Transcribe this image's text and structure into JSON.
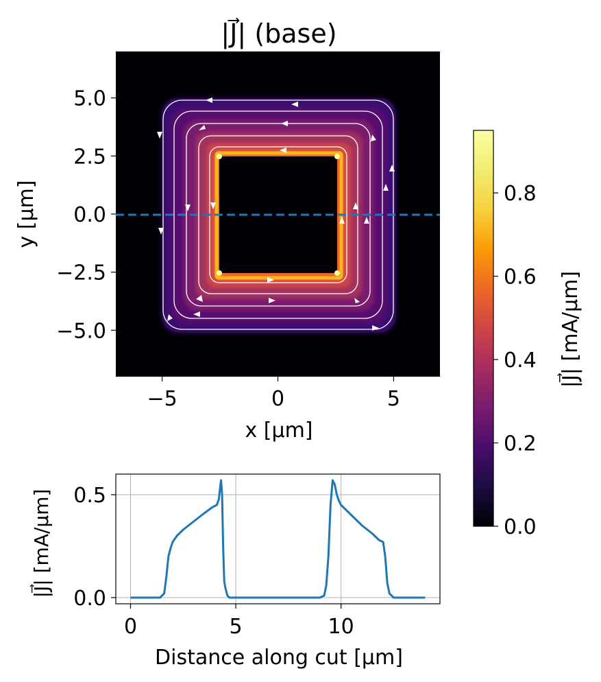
{
  "chart_data": [
    {
      "type": "heatmap",
      "title": "|J⃗| (base)",
      "xlabel": "x [µm]",
      "ylabel": "y [µm]",
      "xlim": [
        -7,
        7
      ],
      "ylim": [
        -7,
        7
      ],
      "x_ticks": [
        -5,
        0,
        5
      ],
      "x_tick_labels": [
        "−5",
        "0",
        "5"
      ],
      "y_ticks": [
        5.0,
        2.5,
        0.0,
        -2.5,
        -5.0
      ],
      "y_tick_labels": [
        "5.0",
        "2.5",
        "0.0",
        "−2.5",
        "−5.0"
      ],
      "colormap": "inferno",
      "description_values": {
        "inner_hole": {
          "x": [
            -2.5,
            2.5
          ],
          "y": [
            -2.5,
            2.5
          ]
        },
        "ring_outer": {
          "x": [
            -5,
            5
          ],
          "y": [
            -5,
            5
          ]
        },
        "peak_current": 0.93
      },
      "streamlines": "counter-clockwise circulation around the central hole",
      "cut_line": {
        "y": 0.0,
        "style": "dashed",
        "color": "#1f77b4"
      },
      "colorbar": {
        "label": "|J⃗| [mA/µm]",
        "range": [
          0.0,
          0.95
        ],
        "ticks": [
          0.0,
          0.2,
          0.4,
          0.6,
          0.8
        ],
        "tick_labels": [
          "0.0",
          "0.2",
          "0.4",
          "0.6",
          "0.8"
        ]
      }
    },
    {
      "type": "line",
      "xlabel": "Distance along cut [µm]",
      "ylabel": "|J⃗| [mA/µm]",
      "xlim": [
        -0.7,
        14.7
      ],
      "ylim": [
        -0.03,
        0.6
      ],
      "x_ticks": [
        0,
        5,
        10
      ],
      "x_tick_labels": [
        "0",
        "5",
        "10"
      ],
      "y_ticks": [
        0.0,
        0.5
      ],
      "y_tick_labels": [
        "0.0",
        "0.5"
      ],
      "grid": true,
      "series": [
        {
          "color": "#1f77b4",
          "x": [
            0,
            1.4,
            1.6,
            1.7,
            1.8,
            1.9,
            2.0,
            2.2,
            2.5,
            3.0,
            3.5,
            3.9,
            4.1,
            4.2,
            4.25,
            4.3,
            4.35,
            4.4,
            4.45,
            4.5,
            4.6,
            4.7,
            4.8,
            5.0,
            9.0,
            9.2,
            9.3,
            9.4,
            9.5,
            9.6,
            9.7,
            9.8,
            9.9,
            10.0,
            10.5,
            11.0,
            11.5,
            11.8,
            12.0,
            12.1,
            12.2,
            12.3,
            12.5,
            14.0
          ],
          "y": [
            0.0,
            0.0,
            0.02,
            0.1,
            0.2,
            0.24,
            0.27,
            0.3,
            0.33,
            0.37,
            0.41,
            0.44,
            0.45,
            0.48,
            0.53,
            0.57,
            0.5,
            0.25,
            0.08,
            0.05,
            0.01,
            0.0,
            0.0,
            0.0,
            0.0,
            0.01,
            0.06,
            0.2,
            0.45,
            0.57,
            0.55,
            0.5,
            0.47,
            0.45,
            0.4,
            0.35,
            0.31,
            0.28,
            0.27,
            0.2,
            0.07,
            0.02,
            0.0,
            0.0
          ]
        }
      ]
    }
  ]
}
